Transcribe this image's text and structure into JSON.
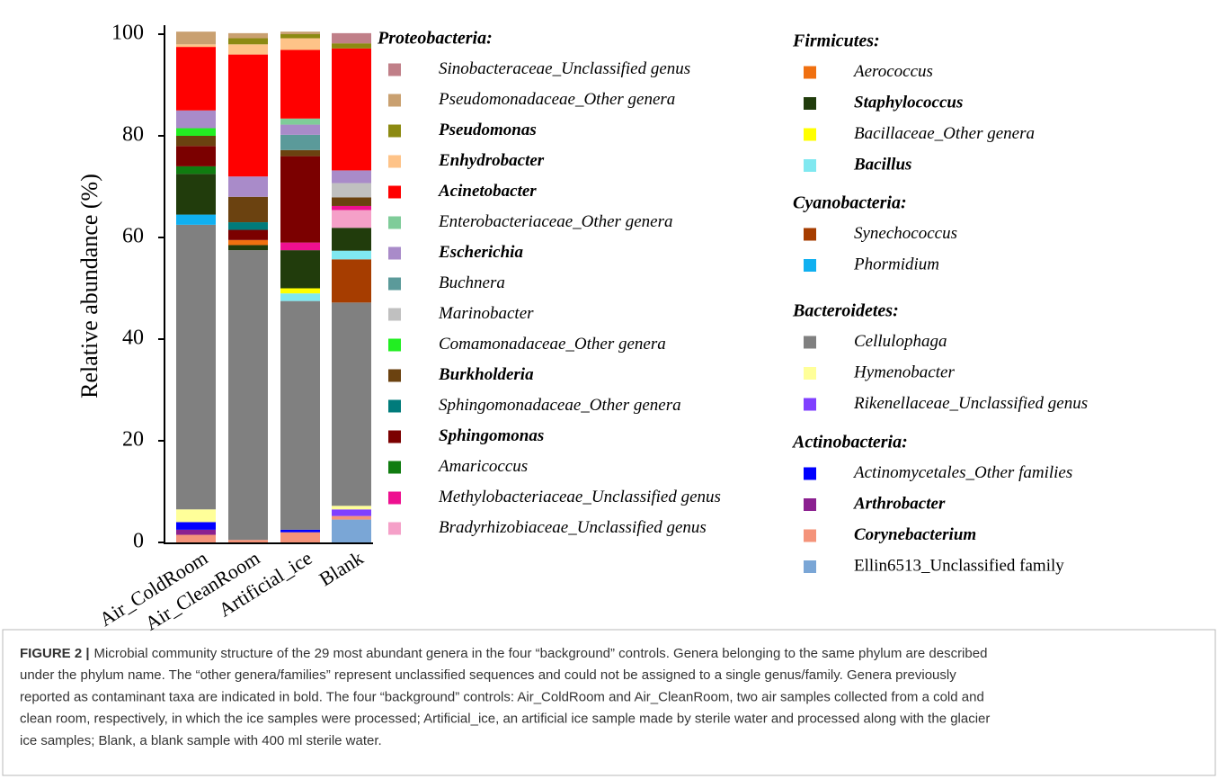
{
  "chart_data": {
    "type": "stacked_bar",
    "y_label": "Relative abundance (%)",
    "categories": [
      "Air_ColdRoom",
      "Air_CleanRoom",
      "Artificial_ice",
      "Blank"
    ],
    "ylim": [
      0,
      100
    ],
    "yticks": [
      0,
      20,
      40,
      60,
      80,
      100
    ],
    "groups": [
      {
        "name": "Proteobacteria:",
        "series": [
          {
            "name": "Sinobacteraceae_Unclassified genus",
            "style": "italic",
            "color": "#c07f88",
            "values": [
              0,
              0,
              0,
              2
            ]
          },
          {
            "name": "Pseudomonadaceae_Other genera",
            "style": "italic",
            "color": "#c9a070",
            "values": [
              2.5,
              1,
              0.5,
              0
            ]
          },
          {
            "name": "Pseudomonas",
            "style": "bold-italic",
            "color": "#8c8a12",
            "values": [
              0,
              1.2,
              0.8,
              1
            ]
          },
          {
            "name": "Enhydrobacter",
            "style": "bold-italic",
            "color": "#fec388",
            "values": [
              0.5,
              2,
              2.3,
              0
            ]
          },
          {
            "name": "Acinetobacter",
            "style": "bold-italic",
            "color": "#ff0000",
            "values": [
              12.5,
              24,
              13.5,
              24
            ]
          },
          {
            "name": "Enterobacteriaceae_Other genera",
            "style": "italic",
            "color": "#7fcc99",
            "values": [
              0,
              0,
              1.2,
              0
            ]
          },
          {
            "name": "Escherichia",
            "style": "bold-italic",
            "color": "#a98bc9",
            "values": [
              3.5,
              4,
              2,
              2.5
            ]
          },
          {
            "name": "Buchnera",
            "style": "italic",
            "color": "#5b9a9a",
            "values": [
              0,
              0,
              3,
              0
            ]
          },
          {
            "name": "Marinobacter",
            "style": "italic",
            "color": "#c0c0c0",
            "values": [
              0,
              0,
              0,
              2.8
            ]
          },
          {
            "name": "Comamonadaceae_Other genera",
            "style": "italic",
            "color": "#22ee22",
            "values": [
              1.5,
              0,
              0,
              0
            ]
          },
          {
            "name": "Burkholderia",
            "style": "bold-italic",
            "color": "#6b4210",
            "values": [
              2,
              5,
              1.2,
              1.7
            ]
          },
          {
            "name": "Sphingomonadaceae_Other genera",
            "style": "italic",
            "color": "#007b7b",
            "values": [
              0,
              1.5,
              0,
              0
            ]
          },
          {
            "name": "Sphingomonas",
            "style": "bold-italic",
            "color": "#7b0000",
            "values": [
              4,
              2,
              17,
              0
            ]
          },
          {
            "name": "Amaricoccus",
            "style": "italic",
            "color": "#107c10",
            "values": [
              1.5,
              0,
              0,
              0
            ]
          },
          {
            "name": "Methylobacteriaceae_Unclassified genus",
            "style": "italic",
            "color": "#ee1090",
            "values": [
              0,
              0,
              1.5,
              0.8
            ]
          },
          {
            "name": "Bradyrhizobiaceae_Unclassified genus",
            "style": "italic",
            "color": "#f5a0c8",
            "values": [
              0,
              0,
              0,
              3.5
            ]
          }
        ]
      },
      {
        "name": "Firmicutes:",
        "series": [
          {
            "name": "Aerococcus",
            "style": "italic",
            "color": "#f07010",
            "values": [
              0,
              1,
              0,
              0
            ]
          },
          {
            "name": "Staphylococcus",
            "style": "bold-italic",
            "color": "#213c0c",
            "values": [
              8,
              1,
              7.5,
              4.5
            ]
          },
          {
            "name": "Bacillaceae_Other genera",
            "style": "italic",
            "color": "#ffff00",
            "values": [
              0,
              0,
              1,
              0
            ]
          },
          {
            "name": "Bacillus",
            "style": "bold-italic",
            "color": "#80e8f0",
            "values": [
              0,
              0,
              1.5,
              1.7
            ]
          }
        ]
      },
      {
        "name": "Cyanobacteria:",
        "series": [
          {
            "name": "Synechococcus",
            "style": "italic",
            "color": "#a63d00",
            "values": [
              0,
              0,
              0,
              8.5
            ]
          },
          {
            "name": "Phormidium",
            "style": "italic",
            "color": "#10b0f0",
            "values": [
              2,
              0,
              0,
              0
            ]
          }
        ]
      },
      {
        "name": "Bacteroidetes:",
        "series": [
          {
            "name": "Cellulophaga",
            "style": "italic",
            "color": "#808080",
            "values": [
              56,
              57,
              45,
              40
            ]
          },
          {
            "name": "Hymenobacter",
            "style": "italic",
            "color": "#ffff99",
            "values": [
              2.5,
              0,
              0,
              0.7
            ]
          },
          {
            "name": "Rikenellaceae_Unclassified genus",
            "style": "italic",
            "color": "#8040ff",
            "values": [
              0,
              0,
              0,
              1.3
            ]
          }
        ]
      },
      {
        "name": "Actinobacteria:",
        "series": [
          {
            "name": "Actinomycetales_Other families",
            "style": "italic",
            "color": "#0000ff",
            "values": [
              1.5,
              0,
              0.5,
              0
            ]
          },
          {
            "name": "Arthrobacter",
            "style": "bold-italic",
            "color": "#8b2090",
            "values": [
              1,
              0,
              0,
              0
            ]
          },
          {
            "name": "Corynebacterium",
            "style": "bold-italic",
            "color": "#f4937a",
            "values": [
              1.5,
              0.5,
              2,
              0.7
            ]
          },
          {
            "name": "Ellin6513_Unclassified family",
            "style": "normal",
            "color": "#7aa6d6",
            "values": [
              0,
              0,
              0,
              4.5
            ]
          }
        ]
      }
    ],
    "caption": {
      "label": "FIGURE 2 |",
      "lines": [
        "Microbial community structure of the 29 most abundant genera in the four “background” controls. Genera belonging to the same phylum are described",
        "under the phylum name. The “other genera/families” represent unclassified sequences and could not be assigned to a single genus/family. Genera previously",
        "reported as contaminant taxa are indicated in bold. The four “background” controls: Air_ColdRoom and Air_CleanRoom, two air samples collected from a cold and",
        "clean room, respectively, in which the ice samples were processed; Artificial_ice, an artificial ice sample made by sterile water and processed along with the glacier",
        "ice samples; Blank, a blank sample with 400 ml sterile water."
      ]
    }
  }
}
